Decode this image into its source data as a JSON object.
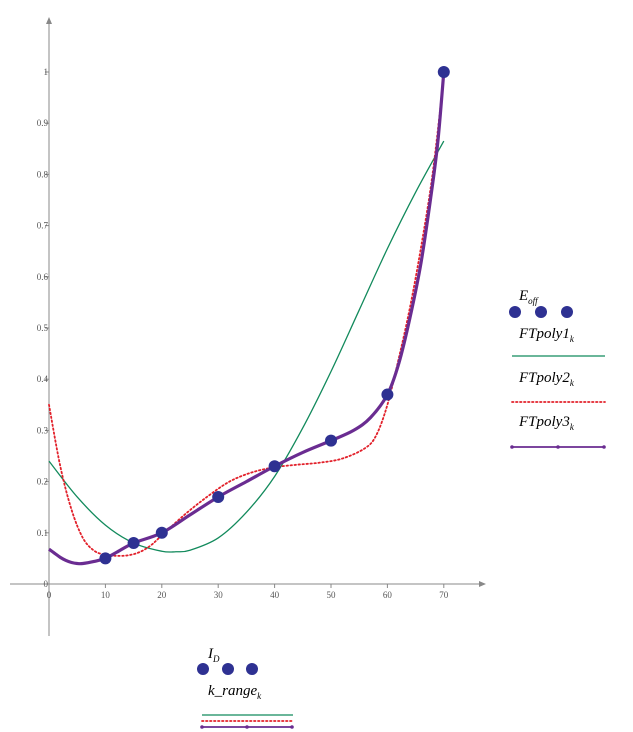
{
  "chart_data": {
    "type": "scatter",
    "xlim": [
      0,
      70
    ],
    "ylim": [
      0,
      1
    ],
    "x_ticks": [
      0,
      10,
      20,
      30,
      40,
      50,
      60,
      70
    ],
    "y_ticks": [
      0,
      0.1,
      0.2,
      0.3,
      0.4,
      0.5,
      0.6,
      0.7,
      0.8,
      0.9,
      1
    ],
    "x_tick_labels": [
      "0",
      "10",
      "20",
      "30",
      "40",
      "50",
      "60",
      "70"
    ],
    "y_tick_labels": [
      "0",
      "0.1",
      "0.2",
      "0.3",
      "0.4",
      "0.5",
      "0.6",
      "0.7",
      "0.8",
      "0.9",
      "1"
    ],
    "grid": false,
    "legend_y": {
      "e_off_main": "E",
      "e_off_sub": "off",
      "ftpoly1_main": "FTpoly1",
      "ftpoly2_main": "FTpoly2",
      "ftpoly3_main": "FTpoly3",
      "k_sub": "k"
    },
    "legend_x": {
      "id_main": "I",
      "id_sub": "D",
      "krange_main": "k_range",
      "k_sub": "k"
    },
    "colors": {
      "markers": "#2e3192",
      "ftpoly1": "#128a5c",
      "ftpoly2": "#e2202a",
      "ftpoly3": "#6a2c91",
      "axis": "#888888"
    },
    "series": [
      {
        "name": "E_off",
        "style": "markers",
        "points": [
          [
            10,
            0.05
          ],
          [
            15,
            0.08
          ],
          [
            20,
            0.1
          ],
          [
            30,
            0.17
          ],
          [
            40,
            0.23
          ],
          [
            50,
            0.28
          ],
          [
            60,
            0.37
          ],
          [
            70,
            1.0
          ]
        ]
      },
      {
        "name": "FTpoly1",
        "style": "solid-thin",
        "points": [
          [
            0,
            0.24
          ],
          [
            5,
            0.17
          ],
          [
            10,
            0.115
          ],
          [
            15,
            0.08
          ],
          [
            20,
            0.064
          ],
          [
            22.5,
            0.063
          ],
          [
            25,
            0.066
          ],
          [
            30,
            0.09
          ],
          [
            35,
            0.14
          ],
          [
            40,
            0.21
          ],
          [
            45,
            0.305
          ],
          [
            50,
            0.415
          ],
          [
            55,
            0.535
          ],
          [
            60,
            0.655
          ],
          [
            65,
            0.765
          ],
          [
            70,
            0.865
          ]
        ]
      },
      {
        "name": "FTpoly2",
        "style": "dotted",
        "points": [
          [
            0,
            0.35
          ],
          [
            2,
            0.23
          ],
          [
            4,
            0.145
          ],
          [
            6,
            0.09
          ],
          [
            8,
            0.065
          ],
          [
            10,
            0.057
          ],
          [
            12,
            0.055
          ],
          [
            14,
            0.056
          ],
          [
            16,
            0.062
          ],
          [
            18,
            0.075
          ],
          [
            20,
            0.095
          ],
          [
            24,
            0.135
          ],
          [
            28,
            0.17
          ],
          [
            32,
            0.2
          ],
          [
            36,
            0.218
          ],
          [
            40,
            0.228
          ],
          [
            44,
            0.233
          ],
          [
            48,
            0.237
          ],
          [
            52,
            0.245
          ],
          [
            56,
            0.265
          ],
          [
            58,
            0.29
          ],
          [
            60,
            0.35
          ],
          [
            62,
            0.44
          ],
          [
            64,
            0.54
          ],
          [
            66,
            0.66
          ],
          [
            68,
            0.8
          ],
          [
            70,
            0.99
          ]
        ]
      },
      {
        "name": "FTpoly3",
        "style": "solid-thick",
        "points": [
          [
            0,
            0.068
          ],
          [
            1,
            0.06
          ],
          [
            2,
            0.052
          ],
          [
            3,
            0.046
          ],
          [
            4,
            0.042
          ],
          [
            5,
            0.04
          ],
          [
            6,
            0.04
          ],
          [
            8,
            0.044
          ],
          [
            10,
            0.05
          ],
          [
            12,
            0.062
          ],
          [
            15,
            0.08
          ],
          [
            20,
            0.1
          ],
          [
            25,
            0.135
          ],
          [
            30,
            0.17
          ],
          [
            35,
            0.2
          ],
          [
            40,
            0.23
          ],
          [
            45,
            0.257
          ],
          [
            50,
            0.28
          ],
          [
            54,
            0.3
          ],
          [
            57,
            0.325
          ],
          [
            60,
            0.37
          ],
          [
            62,
            0.43
          ],
          [
            64,
            0.52
          ],
          [
            66,
            0.63
          ],
          [
            68,
            0.78
          ],
          [
            69,
            0.87
          ],
          [
            70,
            1.0
          ]
        ]
      }
    ]
  }
}
